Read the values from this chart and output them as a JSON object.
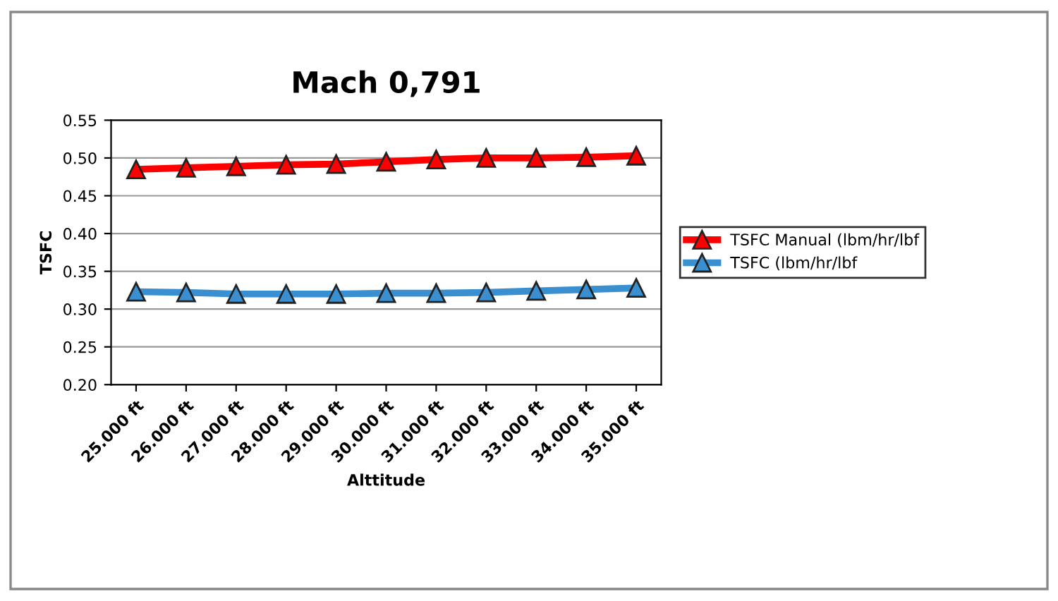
{
  "chart_data": {
    "type": "line",
    "title": "Mach 0,791",
    "xlabel": "Alttitude",
    "ylabel": "TSFC",
    "categories": [
      "25.000 ft",
      "26.000 ft",
      "27.000 ft",
      "28.000 ft",
      "29.000 ft",
      "30.000 ft",
      "31.000 ft",
      "32.000 ft",
      "33.000 ft",
      "34.000 ft",
      "35.000 ft"
    ],
    "series": [
      {
        "name": "TSFC Manual (lbm/hr/lbf",
        "color": "#ff0000",
        "values": [
          0.485,
          0.487,
          0.489,
          0.491,
          0.492,
          0.495,
          0.498,
          0.5,
          0.5,
          0.501,
          0.503
        ]
      },
      {
        "name": "TSFC (lbm/hr/lbf",
        "color": "#3a8fd0",
        "values": [
          0.323,
          0.322,
          0.32,
          0.32,
          0.32,
          0.321,
          0.321,
          0.322,
          0.324,
          0.326,
          0.328
        ]
      }
    ],
    "ylim": [
      0.2,
      0.55
    ],
    "yticks": [
      {
        "value": 0.2,
        "label": "0.20"
      },
      {
        "value": 0.25,
        "label": "0.25"
      },
      {
        "value": 0.3,
        "label": "0.30"
      },
      {
        "value": 0.35,
        "label": "0.35"
      },
      {
        "value": 0.4,
        "label": "0.40"
      },
      {
        "value": 0.45,
        "label": "0.45"
      },
      {
        "value": 0.5,
        "label": "0.50"
      },
      {
        "value": 0.55,
        "label": "0.55"
      }
    ],
    "grid": "y",
    "legend": "right",
    "marker": "triangle"
  }
}
